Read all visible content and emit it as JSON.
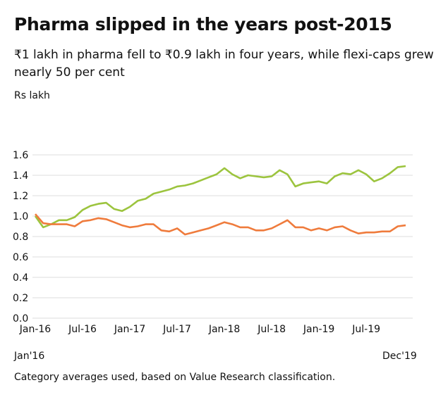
{
  "title": "Pharma slipped in the years post-2015",
  "subtitle": "₹1 lakh in pharma fell to ₹0.9 lakh in four years, while flexi-caps grew nearly 50 per cent",
  "unit_label": "Rs lakh",
  "range_start_label": "Jan'16",
  "range_end_label": "Dec'19",
  "footnote": "Category averages used, based on Value Research classification.",
  "chart_data": {
    "type": "line",
    "title": "Pharma slipped in the years post-2015",
    "ylabel": "Rs lakh",
    "xlabel": "",
    "ylim": [
      0,
      1.6
    ],
    "yticks": [
      "0.0",
      "0.2",
      "0.4",
      "0.6",
      "0.8",
      "1.0",
      "1.2",
      "1.4",
      "1.6"
    ],
    "xticks": [
      "Jan-16",
      "Jul-16",
      "Jan-17",
      "Jul-17",
      "Jan-18",
      "Jul-18",
      "Jan-19",
      "Jul-19"
    ],
    "x_range": [
      "Jan-16",
      "Dec-19"
    ],
    "grid": true,
    "legend": "none",
    "series": [
      {
        "color": "#9cc43e",
        "values": [
          1.0,
          0.89,
          0.92,
          0.96,
          0.96,
          0.99,
          1.06,
          1.1,
          1.12,
          1.13,
          1.07,
          1.05,
          1.09,
          1.15,
          1.17,
          1.22,
          1.24,
          1.26,
          1.29,
          1.3,
          1.32,
          1.35,
          1.38,
          1.41,
          1.47,
          1.41,
          1.37,
          1.4,
          1.39,
          1.38,
          1.39,
          1.45,
          1.41,
          1.29,
          1.32,
          1.33,
          1.34,
          1.32,
          1.39,
          1.42,
          1.41,
          1.45,
          1.41,
          1.34,
          1.37,
          1.42,
          1.48,
          1.49
        ]
      },
      {
        "color": "#ef7b3c",
        "values": [
          1.02,
          0.93,
          0.92,
          0.92,
          0.92,
          0.9,
          0.95,
          0.96,
          0.98,
          0.97,
          0.94,
          0.91,
          0.89,
          0.9,
          0.92,
          0.92,
          0.86,
          0.85,
          0.88,
          0.82,
          0.84,
          0.86,
          0.88,
          0.91,
          0.94,
          0.92,
          0.89,
          0.89,
          0.86,
          0.86,
          0.88,
          0.92,
          0.96,
          0.89,
          0.89,
          0.86,
          0.88,
          0.86,
          0.89,
          0.9,
          0.86,
          0.83,
          0.84,
          0.84,
          0.85,
          0.85,
          0.9,
          0.91
        ]
      }
    ]
  }
}
